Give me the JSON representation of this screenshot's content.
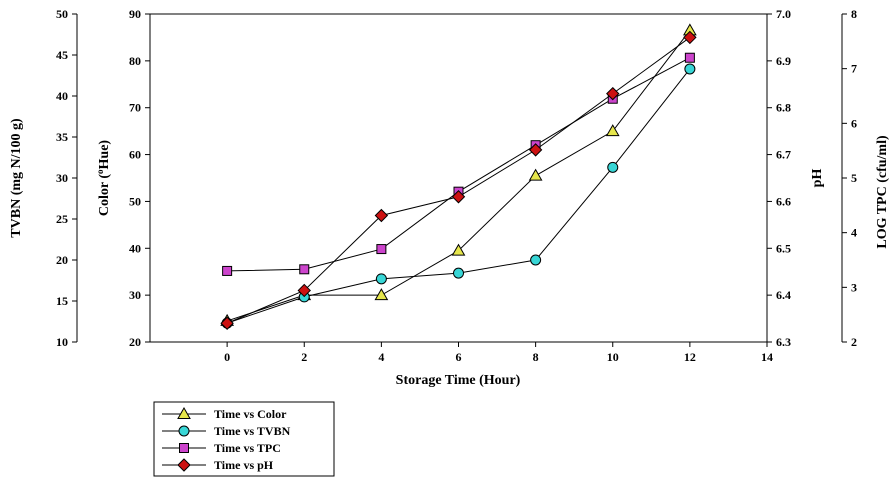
{
  "chart_data": {
    "type": "line",
    "xlabel": "Storage Time (Hour)",
    "x_axis": {
      "range": [
        -2,
        14
      ],
      "ticks": [
        0,
        2,
        4,
        6,
        8,
        10,
        12,
        14
      ]
    },
    "x": [
      0,
      2,
      4,
      6,
      8,
      10,
      12
    ],
    "y_axes": {
      "tvbn": {
        "label": "TVBN (mg N/100 g)",
        "range": [
          10,
          50
        ],
        "ticks": [
          10,
          15,
          20,
          25,
          30,
          35,
          40,
          45,
          50
        ],
        "side": "left-outer"
      },
      "color": {
        "label_prefix": "Color (",
        "label_sup": "o",
        "label_suffix": "Hue)",
        "range": [
          20,
          90
        ],
        "ticks": [
          20,
          30,
          40,
          50,
          60,
          70,
          80,
          90
        ],
        "side": "left-inner"
      },
      "ph": {
        "label": "pH",
        "range": [
          6.3,
          7.0
        ],
        "ticks": [
          "6.3",
          "6.4",
          "6.5",
          "6.6",
          "6.7",
          "6.8",
          "6.9",
          "7.0"
        ],
        "side": "right-inner"
      },
      "tpc": {
        "label": "LOG TPC (cfu/ml)",
        "range": [
          2,
          8
        ],
        "ticks": [
          2,
          3,
          4,
          5,
          6,
          7,
          8
        ],
        "side": "right-outer"
      }
    },
    "series": [
      {
        "name": "Time vs Color",
        "axis": "color",
        "marker": "triangle",
        "color": "#e6e64c",
        "values": [
          24.5,
          30,
          30,
          39.5,
          55.5,
          65,
          86.5
        ]
      },
      {
        "name": "Time vs TVBN",
        "axis": "tvbn",
        "marker": "circle",
        "color": "#38d6d6",
        "values": [
          12.3,
          15.5,
          17.7,
          18.4,
          20,
          31.3,
          43.3
        ]
      },
      {
        "name": "Time vs TPC",
        "axis": "tpc",
        "marker": "square",
        "color": "#cc44cc",
        "values": [
          3.3,
          3.33,
          3.7,
          4.75,
          5.6,
          6.45,
          7.2
        ]
      },
      {
        "name": "Time vs pH",
        "axis": "ph",
        "marker": "diamond",
        "color": "#cc1111",
        "values": [
          6.34,
          6.41,
          6.57,
          6.61,
          6.71,
          6.83,
          6.95
        ]
      }
    ],
    "grid": false,
    "legend": "bottom-left"
  }
}
